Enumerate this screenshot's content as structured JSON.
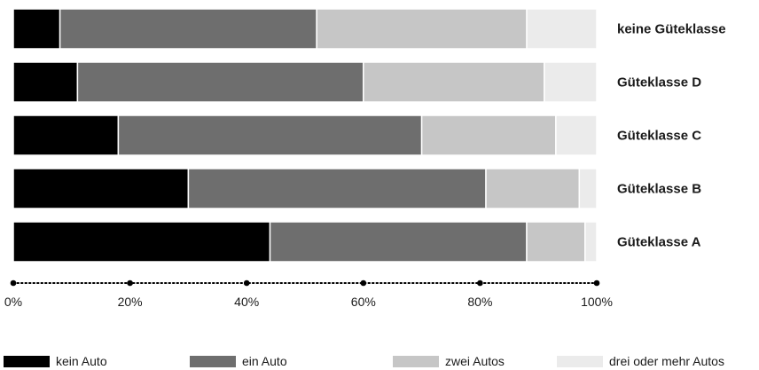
{
  "chart_data": {
    "type": "bar",
    "orientation": "horizontal",
    "stacked": true,
    "percent_stacked": true,
    "categories": [
      "keine Güteklasse",
      "Güteklasse D",
      "Güteklasse C",
      "Güteklasse B",
      "Güteklasse A"
    ],
    "series": [
      {
        "name": "kein Auto",
        "values": [
          8,
          11,
          18,
          30,
          44
        ],
        "color": "#000000"
      },
      {
        "name": "ein Auto",
        "values": [
          44,
          49,
          52,
          51,
          44
        ],
        "color": "#6e6e6e"
      },
      {
        "name": "zwei Autos",
        "values": [
          36,
          31,
          23,
          16,
          10
        ],
        "color": "#c6c6c6"
      },
      {
        "name": "drei oder mehr Autos",
        "values": [
          12,
          9,
          7,
          3,
          2
        ],
        "color": "#ebebeb"
      }
    ],
    "xlim": [
      0,
      100
    ],
    "x_ticks": [
      "0%",
      "20%",
      "40%",
      "60%",
      "80%",
      "100%"
    ],
    "x_axis_style": "dotted",
    "grid": false,
    "legend_position": "bottom"
  }
}
